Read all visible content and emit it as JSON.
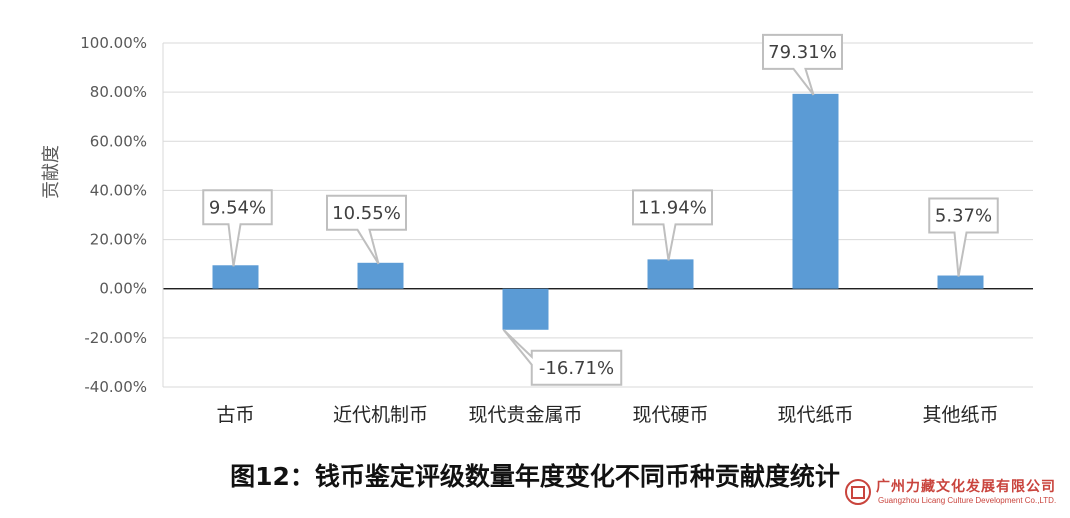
{
  "chart_data": {
    "type": "bar",
    "title": "图12：钱币鉴定评级数量年度变化不同币种贡献度统计",
    "ylabel": "贡献度",
    "xlabel": "",
    "categories": [
      "古币",
      "近代机制币",
      "现代贵金属币",
      "现代硬币",
      "现代纸币",
      "其他纸币"
    ],
    "values": [
      9.54,
      10.55,
      -16.71,
      11.94,
      79.31,
      5.37
    ],
    "data_labels": [
      "9.54%",
      "10.55%",
      "-16.71%",
      "11.94%",
      "79.31%",
      "5.37%"
    ],
    "ylim": [
      -40,
      100
    ],
    "yticks": [
      100,
      80,
      60,
      40,
      20,
      0,
      -20,
      -40
    ],
    "ytick_labels": [
      "100.00%",
      "80.00%",
      "60.00%",
      "40.00%",
      "20.00%",
      "0.00%",
      "-20.00%",
      "-40.00%"
    ],
    "grid": true,
    "bar_color": "#5b9bd5",
    "grid_color": "#d9d9d9"
  },
  "watermark": {
    "company_cn": "广州力藏文化发展有限公司",
    "company_en": "Guangzhou Licang Culture Development Co.,LTD."
  }
}
